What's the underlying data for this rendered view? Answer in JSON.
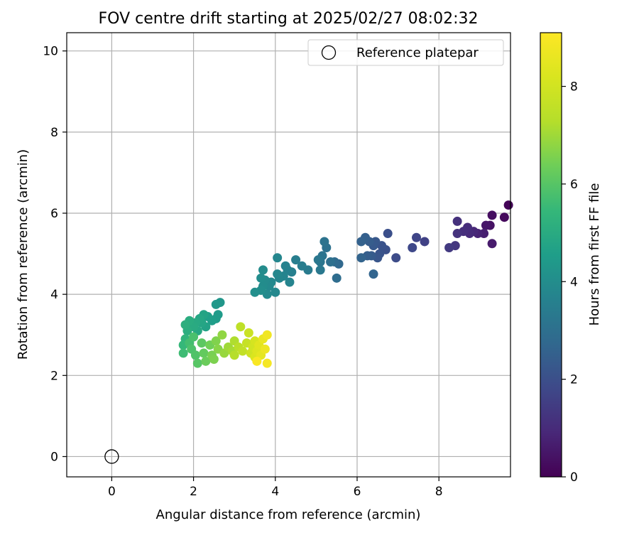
{
  "chart_data": {
    "type": "scatter",
    "title": "FOV centre drift starting at 2025/02/27 08:02:32",
    "xlabel": "Angular distance from reference (arcmin)",
    "ylabel": "Rotation from reference (arcmin)",
    "xlim": [
      -1.1,
      9.75
    ],
    "ylim": [
      -0.5,
      10.45
    ],
    "xticks": [
      "0",
      "2",
      "4",
      "6",
      "8"
    ],
    "yticks": [
      "0",
      "2",
      "4",
      "6",
      "8",
      "10"
    ],
    "grid": true,
    "legend": {
      "placement": "top-right",
      "entries": [
        "Reference platepar"
      ]
    },
    "colorbar": {
      "label": "Hours from first FF file",
      "range": [
        0,
        9.1
      ],
      "ticks": [
        "0",
        "2",
        "4",
        "6",
        "8"
      ],
      "colormap": "viridis"
    },
    "reference_point": {
      "x": 0,
      "y": 0,
      "name": "Reference platepar"
    },
    "series": [
      {
        "points": [
          [
            9.7,
            6.2,
            0.1
          ],
          [
            9.6,
            5.9,
            0.2
          ],
          [
            9.3,
            5.95,
            0.3
          ],
          [
            9.25,
            5.7,
            0.4
          ],
          [
            9.15,
            5.7,
            0.5
          ],
          [
            9.3,
            5.25,
            0.6
          ],
          [
            9.1,
            5.5,
            0.7
          ],
          [
            8.95,
            5.5,
            0.8
          ],
          [
            8.85,
            5.55,
            0.9
          ],
          [
            8.75,
            5.5,
            1.0
          ],
          [
            8.7,
            5.65,
            1.05
          ],
          [
            8.6,
            5.55,
            1.1
          ],
          [
            8.45,
            5.8,
            1.15
          ],
          [
            8.45,
            5.5,
            1.2
          ],
          [
            8.4,
            5.2,
            1.3
          ],
          [
            8.25,
            5.15,
            1.4
          ],
          [
            7.65,
            5.3,
            1.6
          ],
          [
            7.45,
            5.4,
            1.7
          ],
          [
            7.35,
            5.15,
            1.8
          ],
          [
            6.95,
            4.9,
            1.9
          ],
          [
            6.75,
            5.5,
            2.0
          ],
          [
            6.7,
            5.1,
            2.05
          ],
          [
            6.6,
            5.2,
            2.1
          ],
          [
            6.55,
            5.0,
            2.15
          ],
          [
            6.5,
            4.9,
            2.2
          ],
          [
            6.45,
            5.3,
            2.25
          ],
          [
            6.4,
            5.2,
            2.3
          ],
          [
            6.35,
            4.95,
            2.35
          ],
          [
            6.3,
            5.3,
            2.4
          ],
          [
            6.25,
            4.95,
            2.45
          ],
          [
            6.2,
            5.4,
            2.5
          ],
          [
            6.1,
            5.3,
            2.55
          ],
          [
            6.1,
            4.9,
            2.6
          ],
          [
            6.4,
            4.5,
            2.65
          ],
          [
            5.55,
            4.75,
            2.75
          ],
          [
            5.45,
            4.8,
            2.85
          ],
          [
            5.5,
            4.4,
            2.9
          ],
          [
            5.35,
            4.8,
            3.0
          ],
          [
            5.25,
            5.15,
            3.05
          ],
          [
            5.2,
            5.3,
            3.1
          ],
          [
            5.15,
            4.95,
            3.15
          ],
          [
            5.1,
            4.8,
            3.2
          ],
          [
            5.05,
            4.85,
            3.25
          ],
          [
            5.1,
            4.6,
            3.3
          ],
          [
            4.8,
            4.6,
            3.4
          ],
          [
            4.65,
            4.7,
            3.45
          ],
          [
            4.5,
            4.85,
            3.5
          ],
          [
            4.4,
            4.55,
            3.55
          ],
          [
            4.3,
            4.6,
            3.6
          ],
          [
            4.25,
            4.7,
            3.65
          ],
          [
            4.35,
            4.3,
            3.7
          ],
          [
            4.2,
            4.45,
            3.72
          ],
          [
            4.1,
            4.4,
            3.75
          ],
          [
            4.05,
            4.9,
            3.78
          ],
          [
            4.05,
            4.5,
            3.8
          ],
          [
            4.0,
            4.05,
            3.82
          ],
          [
            3.9,
            4.3,
            3.85
          ],
          [
            3.85,
            4.2,
            3.88
          ],
          [
            3.8,
            4.0,
            3.9
          ],
          [
            3.75,
            4.35,
            3.92
          ],
          [
            3.7,
            4.6,
            3.95
          ],
          [
            3.7,
            4.2,
            3.97
          ],
          [
            3.65,
            4.4,
            4.0
          ],
          [
            3.65,
            4.1,
            4.02
          ],
          [
            3.5,
            4.05,
            4.05
          ],
          [
            2.65,
            3.8,
            4.3
          ],
          [
            2.55,
            3.75,
            4.35
          ],
          [
            2.6,
            3.5,
            4.45
          ],
          [
            2.55,
            3.4,
            4.5
          ],
          [
            2.45,
            3.35,
            4.55
          ],
          [
            2.35,
            3.45,
            4.6
          ],
          [
            2.3,
            3.2,
            4.7
          ],
          [
            2.25,
            3.5,
            4.75
          ],
          [
            2.2,
            3.3,
            4.8
          ],
          [
            2.15,
            3.4,
            4.85
          ],
          [
            2.1,
            3.1,
            4.9
          ],
          [
            2.05,
            3.3,
            4.95
          ],
          [
            2.0,
            3.2,
            5.0
          ],
          [
            1.9,
            3.35,
            5.05
          ],
          [
            1.85,
            3.1,
            5.1
          ],
          [
            1.8,
            3.25,
            5.15
          ],
          [
            1.8,
            2.9,
            5.3
          ],
          [
            1.75,
            2.75,
            5.45
          ],
          [
            1.75,
            2.55,
            5.6
          ],
          [
            1.9,
            2.8,
            5.7
          ],
          [
            2.0,
            2.95,
            5.8
          ],
          [
            1.95,
            2.65,
            5.85
          ],
          [
            2.05,
            2.5,
            5.9
          ],
          [
            2.1,
            2.3,
            6.0
          ],
          [
            2.2,
            2.8,
            6.1
          ],
          [
            2.25,
            2.55,
            6.2
          ],
          [
            2.3,
            2.35,
            6.3
          ],
          [
            2.4,
            2.75,
            6.4
          ],
          [
            2.45,
            2.5,
            6.5
          ],
          [
            2.5,
            2.4,
            6.55
          ],
          [
            2.55,
            2.85,
            6.6
          ],
          [
            2.6,
            2.65,
            6.7
          ],
          [
            2.7,
            3.0,
            6.8
          ],
          [
            2.75,
            2.55,
            6.9
          ],
          [
            2.85,
            2.7,
            7.0
          ],
          [
            2.95,
            2.6,
            7.1
          ],
          [
            3.0,
            2.85,
            7.2
          ],
          [
            3.0,
            2.5,
            7.3
          ],
          [
            3.1,
            2.7,
            7.4
          ],
          [
            3.15,
            3.2,
            7.5
          ],
          [
            3.2,
            2.6,
            7.6
          ],
          [
            3.3,
            2.8,
            7.7
          ],
          [
            3.35,
            3.05,
            7.8
          ],
          [
            3.4,
            2.55,
            7.9
          ],
          [
            3.45,
            2.7,
            8.0
          ],
          [
            3.5,
            2.85,
            8.1
          ],
          [
            3.5,
            2.45,
            8.2
          ],
          [
            3.55,
            2.6,
            8.3
          ],
          [
            3.6,
            2.75,
            8.4
          ],
          [
            3.65,
            2.5,
            8.5
          ],
          [
            3.7,
            2.9,
            8.6
          ],
          [
            3.75,
            2.65,
            8.7
          ],
          [
            3.8,
            3.0,
            8.8
          ],
          [
            3.8,
            2.3,
            8.9
          ],
          [
            3.55,
            2.35,
            9.0
          ]
        ]
      }
    ]
  }
}
